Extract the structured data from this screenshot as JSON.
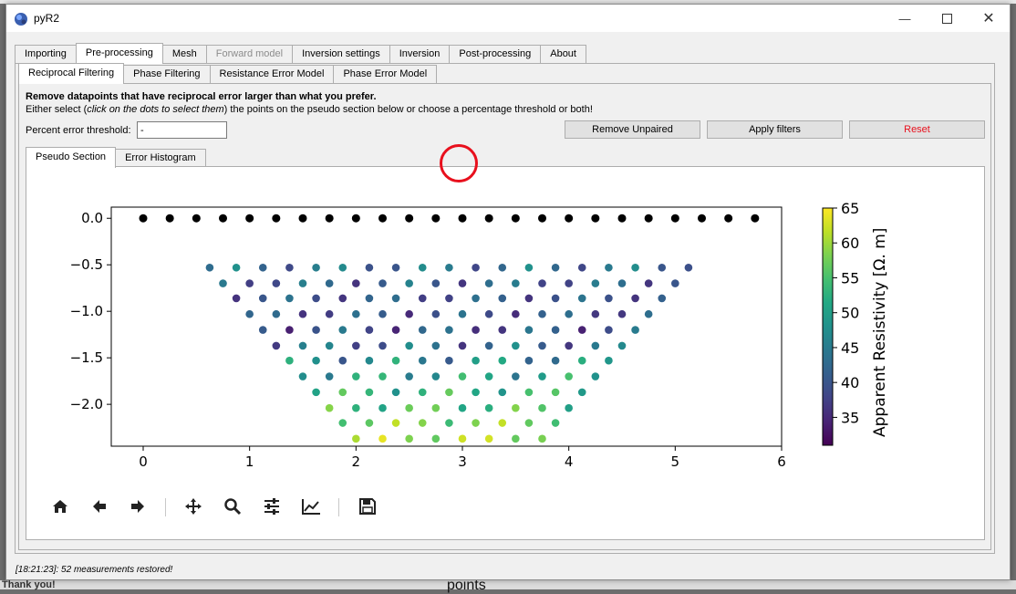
{
  "window": {
    "title": "pyR2"
  },
  "main_tabs": [
    {
      "label": "Importing",
      "state": "normal"
    },
    {
      "label": "Pre-processing",
      "state": "active"
    },
    {
      "label": "Mesh",
      "state": "normal"
    },
    {
      "label": "Forward model",
      "state": "disabled"
    },
    {
      "label": "Inversion settings",
      "state": "normal"
    },
    {
      "label": "Inversion",
      "state": "normal"
    },
    {
      "label": "Post-processing",
      "state": "normal"
    },
    {
      "label": "About",
      "state": "normal"
    }
  ],
  "sub_tabs": [
    {
      "label": "Reciprocal Filtering",
      "state": "active"
    },
    {
      "label": "Phase Filtering",
      "state": "normal"
    },
    {
      "label": "Resistance Error Model",
      "state": "normal"
    },
    {
      "label": "Phase Error Model",
      "state": "normal"
    }
  ],
  "instructions": {
    "heading": "Remove datapoints that have reciprocal error larger than what you prefer.",
    "line_prefix": "Either select (",
    "line_italic": "click on the dots to select them",
    "line_suffix": ") the points on the pseudo section below or choose a percentage threshold or both!"
  },
  "threshold": {
    "label": "Percent error threshold:",
    "value": "-"
  },
  "buttons": {
    "remove_unpaired": "Remove Unpaired",
    "apply_filters": "Apply filters",
    "reset": "Reset",
    "reset_color": "#e8101d"
  },
  "plot_tabs": [
    {
      "label": "Pseudo Section",
      "state": "active"
    },
    {
      "label": "Error Histogram",
      "state": "normal"
    }
  ],
  "toolbar_icons": [
    "home-icon",
    "back-arrow-icon",
    "forward-arrow-icon",
    "pan-icon",
    "zoom-icon",
    "configure-subplots-icon",
    "edit-axes-icon",
    "save-icon"
  ],
  "status": {
    "text": "[18:21:23]: 52 measurements restored!"
  },
  "background": {
    "bottom_left_text": "Thank you!",
    "bottom_center_text": "points"
  },
  "chart_data": {
    "type": "scatter",
    "xlim": [
      -0.3,
      6
    ],
    "ylim": [
      -2.45,
      0.12
    ],
    "x_ticks": [
      "0",
      "1",
      "2",
      "3",
      "4",
      "5",
      "6"
    ],
    "y_ticks": [
      "0.0",
      "−0.5",
      "−1.0",
      "−1.5",
      "−2.0"
    ],
    "colorbar": {
      "label": "Apparent Resistivity [Ω. m]",
      "min": 31,
      "max": 65,
      "ticks": [
        "35",
        "40",
        "45",
        "50",
        "55",
        "60",
        "65"
      ],
      "colormap": "viridis"
    },
    "electrodes": {
      "color": "#000000",
      "x": [
        0,
        0.25,
        0.5,
        0.75,
        1,
        1.25,
        1.5,
        1.75,
        2,
        2.25,
        2.5,
        2.75,
        3,
        3.25,
        3.5,
        3.75,
        4,
        4.25,
        4.5,
        4.75,
        5,
        5.25,
        5.5,
        5.75
      ],
      "y": 0
    },
    "levels": [
      -0.53,
      -0.7,
      -0.86,
      -1.03,
      -1.2,
      -1.37,
      -1.53,
      -1.7,
      -1.87,
      -2.04,
      -2.2,
      -2.37
    ],
    "level_value_ranges": [
      [
        38,
        48
      ],
      [
        36,
        46
      ],
      [
        36,
        44
      ],
      [
        35,
        44
      ],
      [
        34,
        45
      ],
      [
        36,
        48
      ],
      [
        40,
        53
      ],
      [
        44,
        55
      ],
      [
        48,
        57
      ],
      [
        50,
        59
      ],
      [
        54,
        62
      ],
      [
        56,
        64
      ]
    ]
  }
}
